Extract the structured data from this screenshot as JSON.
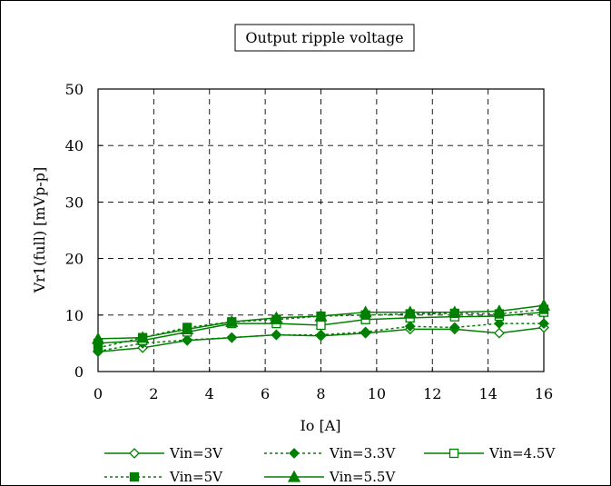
{
  "chart_data": {
    "type": "line",
    "title": "Output ripple voltage",
    "xlabel": "Io [A]",
    "ylabel": "Vr1(full) [mVp-p]",
    "xlim": [
      0,
      16
    ],
    "ylim": [
      0,
      50
    ],
    "xticks": [
      0,
      2,
      4,
      6,
      8,
      10,
      12,
      14,
      16
    ],
    "yticks": [
      0,
      10,
      20,
      30,
      40,
      50
    ],
    "grid": true,
    "legend_position": "bottom",
    "x": [
      0,
      1.6,
      3.2,
      4.8,
      6.4,
      8.0,
      9.6,
      11.2,
      12.8,
      14.4,
      16.0
    ],
    "series": [
      {
        "name": "Vin=3V",
        "marker": "diamond-open",
        "line": "solid",
        "values": [
          3.5,
          4.2,
          5.5,
          6.0,
          6.5,
          6.3,
          6.8,
          7.5,
          7.5,
          6.8,
          7.8
        ]
      },
      {
        "name": "Vin=3.3V",
        "marker": "diamond-filled",
        "line": "dotted",
        "values": [
          3.6,
          5.0,
          5.6,
          6.0,
          6.5,
          6.5,
          7.0,
          8.0,
          7.8,
          8.5,
          8.5
        ]
      },
      {
        "name": "Vin=4.5V",
        "marker": "square-open",
        "line": "solid",
        "values": [
          5.0,
          5.5,
          7.0,
          8.5,
          8.5,
          8.2,
          9.2,
          9.5,
          9.7,
          9.8,
          10.5
        ]
      },
      {
        "name": "Vin=5V",
        "marker": "square-filled",
        "line": "dotted",
        "values": [
          4.2,
          6.0,
          7.8,
          8.8,
          9.2,
          9.8,
          10.0,
          10.2,
          10.3,
          10.2,
          11.0
        ]
      },
      {
        "name": "Vin=5.5V",
        "marker": "triangle-filled",
        "line": "solid",
        "values": [
          5.8,
          6.0,
          7.5,
          8.8,
          9.5,
          9.8,
          10.5,
          10.5,
          10.5,
          10.7,
          11.7
        ]
      }
    ],
    "colors": {
      "series": "#008000",
      "axis": "#000000",
      "grid": "#000000",
      "background": "#ffffff"
    }
  }
}
